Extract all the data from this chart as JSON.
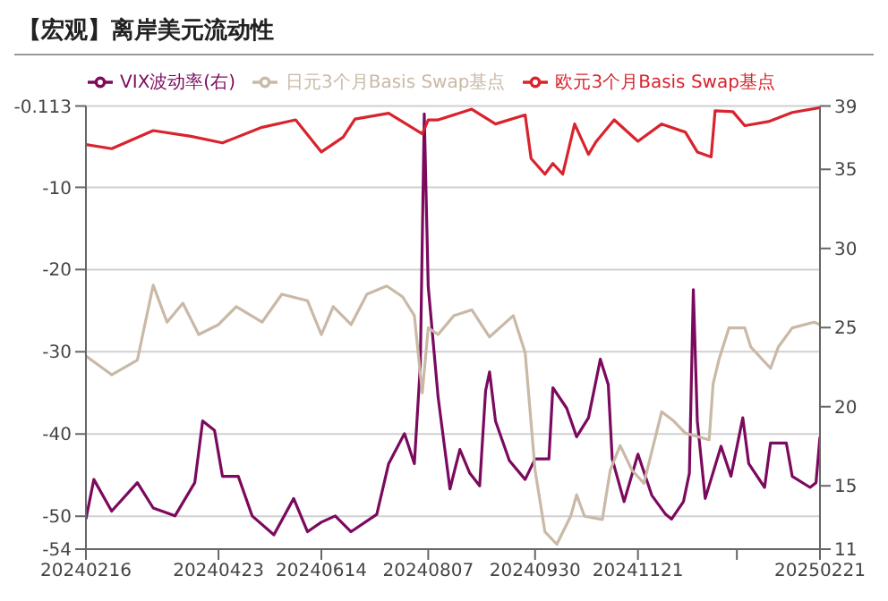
{
  "chart_data": {
    "type": "line",
    "title": "【宏观】离岸美元流动性",
    "legend": "top",
    "grid": "y",
    "xlim": [
      "2024-02-16",
      "2025-02-21"
    ],
    "xticks": [
      {
        "value": "2024-02-16",
        "label": "20240216"
      },
      {
        "value": "2024-04-23",
        "label": "20240423"
      },
      {
        "value": "2024-06-14",
        "label": "20240614"
      },
      {
        "value": "2024-08-07",
        "label": "20240807"
      },
      {
        "value": "2024-09-30",
        "label": "20240930"
      },
      {
        "value": "2024-11-21",
        "label": "20241121"
      },
      {
        "value": "2025-01-10",
        "label": null
      },
      {
        "value": "2025-02-21",
        "label": "20250221"
      }
    ],
    "ylim": [
      -54,
      -0.113
    ],
    "yticks": [
      -0.113,
      -10,
      -20,
      -30,
      -40,
      -50,
      -54
    ],
    "y2lim": [
      11,
      39
    ],
    "y2ticks": [
      11,
      15,
      20,
      25,
      30,
      35,
      39
    ],
    "series": [
      {
        "name": "VIX波动率(右)",
        "color": "#7b0a5e",
        "axis": "y2",
        "x": [
          "2024-02-16",
          "2024-02-20",
          "2024-02-29",
          "2024-03-13",
          "2024-03-21",
          "2024-04-01",
          "2024-04-11",
          "2024-04-15",
          "2024-04-21",
          "2024-04-25",
          "2024-05-03",
          "2024-05-10",
          "2024-05-21",
          "2024-05-31",
          "2024-06-07",
          "2024-06-14",
          "2024-06-21",
          "2024-06-29",
          "2024-07-12",
          "2024-07-18",
          "2024-07-26",
          "2024-07-31",
          "2024-08-03",
          "2024-08-05",
          "2024-08-07",
          "2024-08-12",
          "2024-08-18",
          "2024-08-23",
          "2024-08-28",
          "2024-09-02",
          "2024-09-05",
          "2024-09-07",
          "2024-09-10",
          "2024-09-17",
          "2024-09-25",
          "2024-09-30",
          "2024-10-07",
          "2024-10-09",
          "2024-10-16",
          "2024-10-21",
          "2024-10-27",
          "2024-11-02",
          "2024-11-06",
          "2024-11-08",
          "2024-11-14",
          "2024-11-21",
          "2024-11-28",
          "2024-12-05",
          "2024-12-08",
          "2024-12-14",
          "2024-12-17",
          "2024-12-19",
          "2024-12-21",
          "2024-12-25",
          "2025-01-02",
          "2025-01-07",
          "2025-01-13",
          "2025-01-16",
          "2025-01-24",
          "2025-01-27",
          "2025-02-04",
          "2025-02-07",
          "2025-02-16",
          "2025-02-19",
          "2025-02-21"
        ],
        "values": [
          12.9,
          15.4,
          13.4,
          15.2,
          13.6,
          13.1,
          15.2,
          19.1,
          18.5,
          15.6,
          15.6,
          13.1,
          11.9,
          14.2,
          12.1,
          12.7,
          13.1,
          12.1,
          13.2,
          16.4,
          18.3,
          16.4,
          22.6,
          38.5,
          27.6,
          20.6,
          14.8,
          17.3,
          15.8,
          15.0,
          21.0,
          22.2,
          19.1,
          16.6,
          15.4,
          16.7,
          16.7,
          21.2,
          19.9,
          18.1,
          19.3,
          23.0,
          21.4,
          16.7,
          14.0,
          17.0,
          14.4,
          13.2,
          12.9,
          14.0,
          15.8,
          27.4,
          19.1,
          14.2,
          17.5,
          15.6,
          19.3,
          16.4,
          14.9,
          17.7,
          17.7,
          15.6,
          14.9,
          15.2,
          18.1
        ]
      },
      {
        "name": "日元3个月Basis Swap基点",
        "color": "#c9b9a6",
        "x": [
          "2024-02-16",
          "2024-02-29",
          "2024-03-13",
          "2024-03-21",
          "2024-03-28",
          "2024-04-05",
          "2024-04-13",
          "2024-04-23",
          "2024-05-02",
          "2024-05-15",
          "2024-05-25",
          "2024-06-07",
          "2024-06-14",
          "2024-06-20",
          "2024-06-29",
          "2024-07-07",
          "2024-07-17",
          "2024-07-25",
          "2024-07-31",
          "2024-08-04",
          "2024-08-07",
          "2024-08-12",
          "2024-08-20",
          "2024-08-29",
          "2024-09-07",
          "2024-09-19",
          "2024-09-25",
          "2024-09-30",
          "2024-10-05",
          "2024-10-11",
          "2024-10-18",
          "2024-10-21",
          "2024-10-25",
          "2024-11-03",
          "2024-11-07",
          "2024-11-12",
          "2024-11-18",
          "2024-11-24",
          "2024-12-03",
          "2024-12-09",
          "2024-12-15",
          "2024-12-27",
          "2024-12-29",
          "2025-01-01",
          "2025-01-06",
          "2025-01-14",
          "2025-01-17",
          "2025-01-27",
          "2025-01-31",
          "2025-02-07",
          "2025-02-18",
          "2025-02-21"
        ],
        "values": [
          -30.5,
          -32.8,
          -31.0,
          -21.9,
          -26.4,
          -24.1,
          -27.9,
          -26.7,
          -24.5,
          -26.4,
          -23.0,
          -23.8,
          -27.9,
          -24.5,
          -26.7,
          -23.0,
          -22.0,
          -23.3,
          -25.6,
          -35.0,
          -27.1,
          -27.9,
          -25.6,
          -24.9,
          -28.2,
          -25.6,
          -30.1,
          -44.4,
          -51.9,
          -53.4,
          -50.0,
          -47.4,
          -50.0,
          -50.4,
          -44.4,
          -41.4,
          -44.4,
          -46.0,
          -37.3,
          -38.4,
          -39.9,
          -40.7,
          -33.9,
          -30.9,
          -27.1,
          -27.1,
          -29.4,
          -32.0,
          -29.4,
          -27.1,
          -26.4,
          -26.7
        ]
      },
      {
        "name": "欧元3个月Basis Swap基点",
        "color": "#d9232d",
        "x": [
          "2024-02-16",
          "2024-02-29",
          "2024-03-21",
          "2024-04-09",
          "2024-04-25",
          "2024-05-15",
          "2024-06-01",
          "2024-06-14",
          "2024-06-25",
          "2024-07-01",
          "2024-07-18",
          "2024-08-04",
          "2024-08-07",
          "2024-08-12",
          "2024-08-29",
          "2024-09-10",
          "2024-09-25",
          "2024-09-28",
          "2024-10-05",
          "2024-10-09",
          "2024-10-14",
          "2024-10-20",
          "2024-10-27",
          "2024-10-31",
          "2024-11-09",
          "2024-11-21",
          "2024-12-03",
          "2024-12-15",
          "2024-12-21",
          "2024-12-28",
          "2024-12-30",
          "2025-01-08",
          "2025-01-14",
          "2025-01-26",
          "2025-02-07",
          "2025-02-21"
        ],
        "values": [
          -4.8,
          -5.3,
          -3.1,
          -3.8,
          -4.6,
          -2.7,
          -1.8,
          -5.7,
          -3.9,
          -1.7,
          -1.0,
          -3.5,
          -1.8,
          -1.8,
          -0.5,
          -2.3,
          -1.2,
          -6.5,
          -8.4,
          -7.1,
          -8.4,
          -2.3,
          -6.0,
          -4.4,
          -1.8,
          -4.4,
          -2.3,
          -3.3,
          -5.7,
          -6.3,
          -0.7,
          -0.8,
          -2.5,
          -2.0,
          -0.9,
          -0.3
        ]
      }
    ]
  }
}
